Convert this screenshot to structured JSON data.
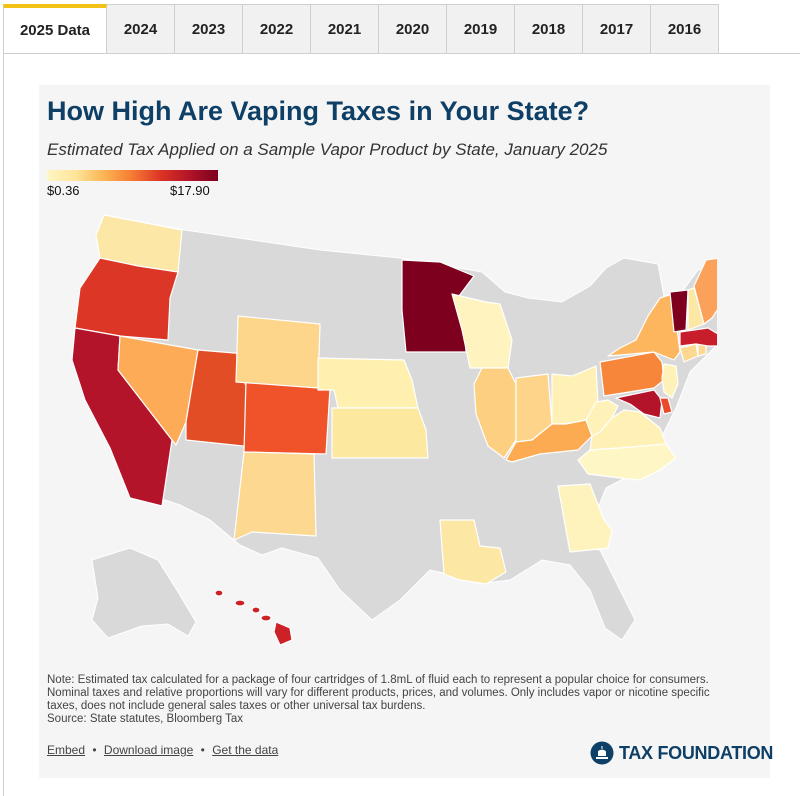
{
  "tabs": [
    {
      "label": "2025 Data",
      "active": true
    },
    {
      "label": "2024"
    },
    {
      "label": "2023"
    },
    {
      "label": "2022"
    },
    {
      "label": "2021"
    },
    {
      "label": "2020"
    },
    {
      "label": "2019"
    },
    {
      "label": "2018"
    },
    {
      "label": "2017"
    },
    {
      "label": "2016"
    }
  ],
  "header": {
    "title": "How High Are Vaping Taxes in Your State?",
    "subtitle": "Estimated Tax Applied on a Sample Vapor Product by State, January 2025"
  },
  "legend": {
    "min_label": "$0.36",
    "max_label": "$17.90",
    "colors": [
      "#fff6c4",
      "#fde59a",
      "#fdb454",
      "#f57a33",
      "#dc3324",
      "#b21428",
      "#7c001f"
    ]
  },
  "map": {
    "no_tax_color": "#d9d9d9",
    "taxed_states": [
      {
        "state": "Washington",
        "color": "#fde7a6"
      },
      {
        "state": "Oregon",
        "color": "#db3626"
      },
      {
        "state": "California",
        "color": "#b4142a"
      },
      {
        "state": "Nevada",
        "color": "#fdab57"
      },
      {
        "state": "Utah",
        "color": "#e24d26"
      },
      {
        "state": "Colorado",
        "color": "#f0532a"
      },
      {
        "state": "Wyoming",
        "color": "#fdd58b"
      },
      {
        "state": "New Mexico",
        "color": "#fdd890"
      },
      {
        "state": "Nebraska",
        "color": "#fff0b0"
      },
      {
        "state": "Kansas",
        "color": "#fde8a0"
      },
      {
        "state": "Minnesota",
        "color": "#7d001f"
      },
      {
        "state": "Wisconsin",
        "color": "#fff4bf"
      },
      {
        "state": "Illinois",
        "color": "#fdcf80"
      },
      {
        "state": "Indiana",
        "color": "#fdd48a"
      },
      {
        "state": "Ohio",
        "color": "#fff0b5"
      },
      {
        "state": "Kentucky",
        "color": "#fdab52"
      },
      {
        "state": "West Virginia",
        "color": "#fff2b8"
      },
      {
        "state": "Virginia",
        "color": "#fff0b5"
      },
      {
        "state": "North Carolina",
        "color": "#fff6c6"
      },
      {
        "state": "Georgia",
        "color": "#fff3bd"
      },
      {
        "state": "Louisiana",
        "color": "#fde7a5"
      },
      {
        "state": "Pennsylvania",
        "color": "#f7863a"
      },
      {
        "state": "New York",
        "color": "#fdb55e"
      },
      {
        "state": "New Jersey",
        "color": "#fff2b8"
      },
      {
        "state": "Maryland",
        "color": "#b4142a"
      },
      {
        "state": "Delaware",
        "color": "#e84a2a"
      },
      {
        "state": "Connecticut",
        "color": "#fdd890"
      },
      {
        "state": "Rhode Island",
        "color": "#fdd890"
      },
      {
        "state": "Massachusetts",
        "color": "#c81e2b"
      },
      {
        "state": "Vermont",
        "color": "#7d001f"
      },
      {
        "state": "New Hampshire",
        "color": "#fde7a5"
      },
      {
        "state": "Maine",
        "color": "#fba159"
      },
      {
        "state": "Hawaii",
        "color": "#cc2227"
      }
    ]
  },
  "note": {
    "lines": [
      "Note: Estimated tax calculated for a package of four cartridges of 1.8mL of fluid each to represent a popular choice for consumers.",
      "Nominal taxes and relative proportions will vary for different products, prices, and volumes. Only includes vapor or nicotine specific",
      "taxes, does not include general sales taxes or other universal tax burdens.",
      "Source: State statutes, Bloomberg Tax"
    ]
  },
  "links": {
    "embed": "Embed",
    "download": "Download image",
    "data": "Get the data",
    "separator": "•"
  },
  "logo": {
    "text": "TAX FOUNDATION"
  }
}
